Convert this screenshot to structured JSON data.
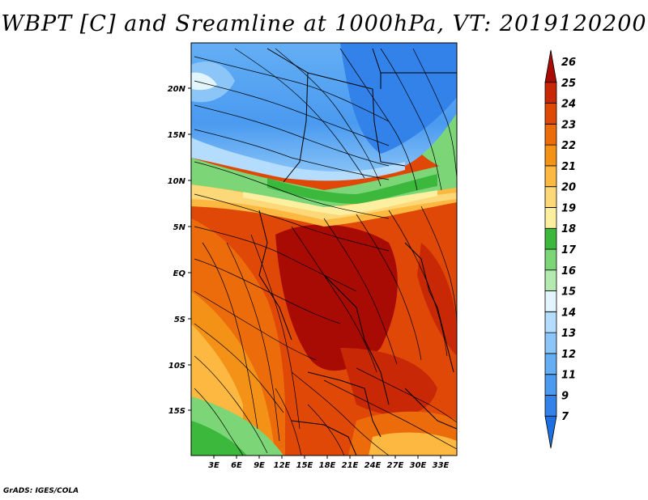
{
  "title": "WBPT [C] and Sreamline at 1000hPa, VT: 2019120200",
  "footer": "GrADS: IGES/COLA",
  "map": {
    "lat_labels": [
      "20N",
      "15N",
      "10N",
      "5N",
      "EQ",
      "5S",
      "10S",
      "15S"
    ],
    "lon_labels": [
      "3E",
      "6E",
      "9E",
      "12E",
      "15E",
      "18E",
      "21E",
      "24E",
      "27E",
      "30E",
      "33E"
    ],
    "lat_range": [
      -19,
      24
    ],
    "lon_range": [
      0,
      35
    ]
  },
  "colorbar": {
    "labels": [
      "7",
      "9",
      "11",
      "12",
      "13",
      "14",
      "15",
      "16",
      "17",
      "18",
      "19",
      "20",
      "21",
      "22",
      "23",
      "24",
      "25",
      "26"
    ],
    "colors": [
      "#1e6fe0",
      "#3282ea",
      "#4a9af0",
      "#64aef4",
      "#8cc6f8",
      "#b4dcfc",
      "#e2f4fc",
      "#b4eab0",
      "#7cd678",
      "#3cb83c",
      "#fcf0a0",
      "#fcd878",
      "#fcb840",
      "#f49218",
      "#ec6c0c",
      "#e04808",
      "#c82806",
      "#a80a04"
    ]
  },
  "colors": {
    "background": "#ffffff",
    "ocean_top": "#4a9af0",
    "warm": "#e04808"
  }
}
